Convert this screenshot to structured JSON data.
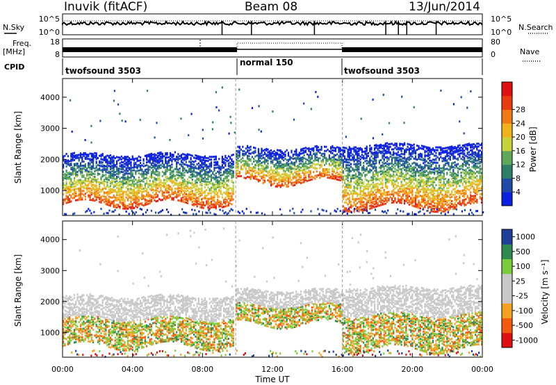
{
  "header": {
    "station": "Inuvik (fitACF)",
    "beam": "Beam 08",
    "date": "13/Jun/2014"
  },
  "side_labels": {
    "nsky": "N.Sky",
    "nsearch": "N.Search",
    "freq_line1": "Freq.",
    "freq_line2": "[MHz]",
    "nave": "Nave",
    "cpid": "CPID"
  },
  "noise_panel": {
    "left_ticks": [
      "10^5",
      "10^0"
    ],
    "right_ticks": [
      "10^5",
      "10^0"
    ]
  },
  "freq_panel": {
    "left_ticks": [
      "18",
      "8"
    ],
    "right_ticks": [
      "80",
      "0"
    ]
  },
  "cpid_labels": [
    "twofsound 3503",
    "normal 150",
    "twofsound 3503"
  ],
  "colors": {
    "power_scale": [
      "#0b1fe0",
      "#1f4aa8",
      "#2e7f6a",
      "#5fa85a",
      "#c8d23a",
      "#f2b21c",
      "#f27a14",
      "#e83c10",
      "#e01010"
    ],
    "velocity_scale": [
      "#e01010",
      "#f25a10",
      "#f4a020",
      "#c8c8c8",
      "#c8c8c8",
      "#7ccc3a",
      "#2e8a4e",
      "#1f3e9a"
    ]
  },
  "chart_data": [
    {
      "type": "heatmap",
      "title": "",
      "xlabel": "",
      "ylabel": "Slant Range [km]",
      "x_ticks": [
        "00:00",
        "04:00",
        "08:00",
        "12:00",
        "16:00",
        "20:00",
        "00:00"
      ],
      "y_ticks": [
        1000,
        2000,
        3000,
        4000
      ],
      "ylim": [
        200,
        4600
      ],
      "xlim_hours": [
        0,
        24
      ],
      "colorbar": {
        "label": "Power [dB]",
        "ticks": [
          4,
          8,
          12,
          16,
          20,
          24,
          28
        ]
      },
      "bands": [
        {
          "t0": 0.0,
          "t1": 9.8,
          "r0": 600,
          "r1": 2200
        },
        {
          "t0": 9.9,
          "t1": 16.0,
          "r0": 1300,
          "r1": 2400
        },
        {
          "t0": 16.0,
          "t1": 24.0,
          "r0": 500,
          "r1": 2500
        }
      ]
    },
    {
      "type": "heatmap",
      "title": "",
      "xlabel": "Time UT",
      "ylabel": "Slant Range [km]",
      "x_ticks": [
        "00:00",
        "04:00",
        "08:00",
        "12:00",
        "16:00",
        "20:00",
        "00:00"
      ],
      "y_ticks": [
        1000,
        2000,
        3000,
        4000
      ],
      "ylim": [
        200,
        4600
      ],
      "xlim_hours": [
        0,
        24
      ],
      "colorbar": {
        "label": "Velocity [m s⁻¹]",
        "ticks": [
          1000,
          500,
          100,
          25,
          -25,
          -100,
          -500,
          -1000
        ]
      },
      "bands": [
        {
          "t0": 0.0,
          "t1": 9.8,
          "r0": 600,
          "r1": 2200
        },
        {
          "t0": 9.9,
          "t1": 16.0,
          "r0": 1300,
          "r1": 2400
        },
        {
          "t0": 16.0,
          "t1": 24.0,
          "r0": 500,
          "r1": 2500
        }
      ]
    }
  ]
}
